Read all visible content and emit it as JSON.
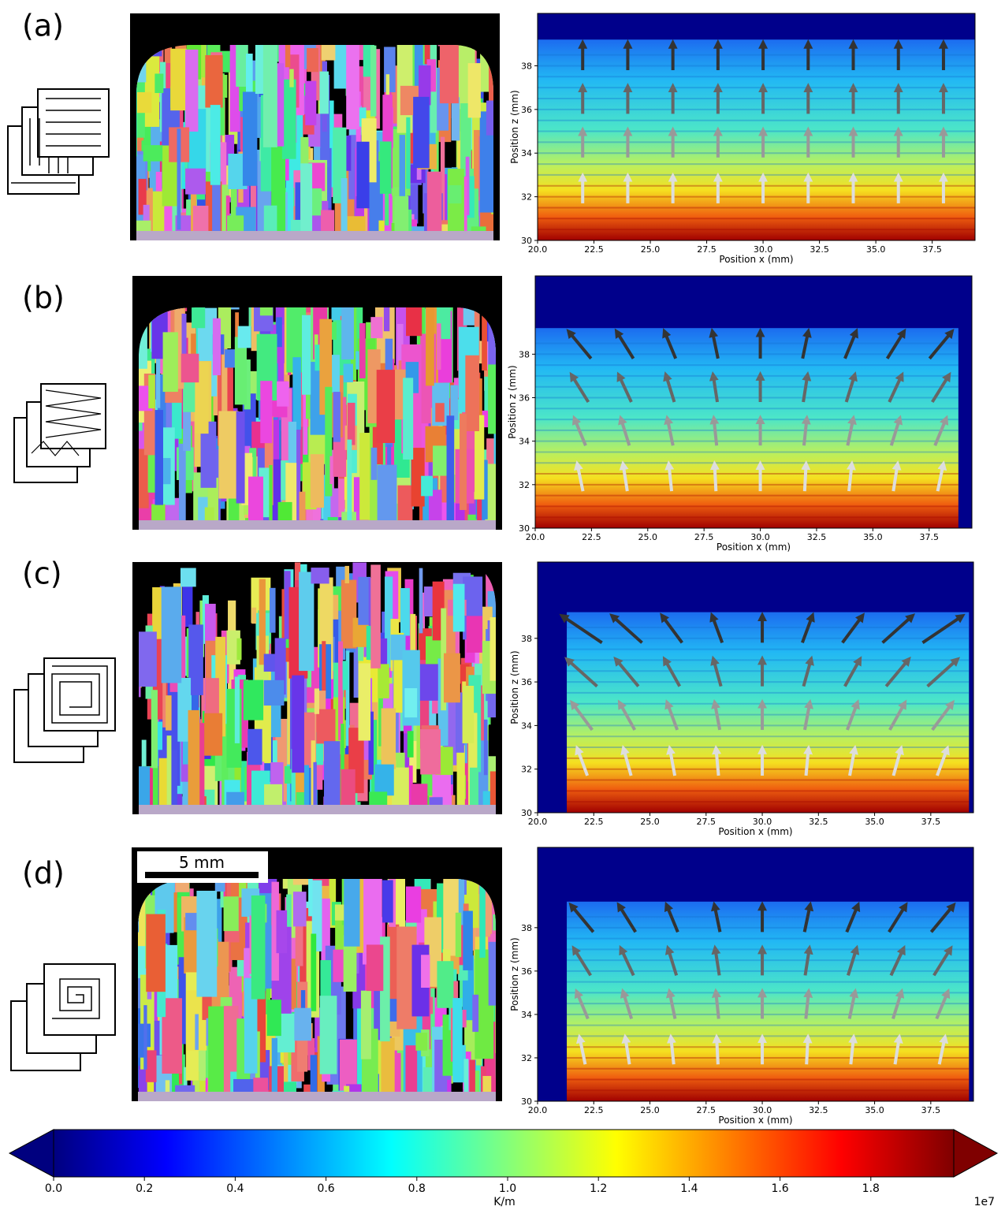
{
  "chart_data": [
    {
      "type": "heatmap",
      "label": "(a)",
      "x_label": "Position x (mm)",
      "y_label": "Position z (mm)",
      "xlim": [
        20,
        39.4
      ],
      "ylim": [
        30,
        40.4
      ],
      "xticks": [
        {
          "value": 20,
          "label": "20.0"
        },
        22.5,
        {
          "value": 25,
          "label": "25.0"
        },
        27.5,
        {
          "value": 30,
          "label": "30.0"
        },
        32.5,
        {
          "value": 35,
          "label": "35.0"
        },
        37.5
      ],
      "yticks": [
        30,
        32,
        34,
        36,
        38
      ]
    },
    {
      "type": "heatmap",
      "label": "(b)",
      "x_label": "Position x (mm)",
      "y_label": "Position z (mm)",
      "xlim": [
        20,
        39.4
      ],
      "ylim": [
        30,
        41.6
      ],
      "xticks": [
        {
          "value": 20,
          "label": "20.0"
        },
        22.5,
        {
          "value": 25,
          "label": "25.0"
        },
        27.5,
        {
          "value": 30,
          "label": "30.0"
        },
        32.5,
        {
          "value": 35,
          "label": "35.0"
        },
        37.5
      ],
      "yticks": [
        30,
        32,
        34,
        36,
        38
      ]
    },
    {
      "type": "heatmap",
      "label": "(c)",
      "x_label": "Position x (mm)",
      "y_label": "Position z (mm)",
      "xlim": [
        20,
        39.4
      ],
      "ylim": [
        30,
        41.5
      ],
      "xticks": [
        {
          "value": 20,
          "label": "20.0"
        },
        22.5,
        {
          "value": 25,
          "label": "25.0"
        },
        27.5,
        {
          "value": 30,
          "label": "30.0"
        },
        32.5,
        {
          "value": 35,
          "label": "35.0"
        },
        37.5
      ],
      "yticks": [
        30,
        32,
        34,
        36,
        38
      ]
    },
    {
      "type": "heatmap",
      "label": "(d)",
      "x_label": "Position x (mm)",
      "y_label": "Position z (mm)",
      "xlim": [
        20,
        39.4
      ],
      "ylim": [
        30,
        41.7
      ],
      "xticks": [
        {
          "value": 20,
          "label": "20.0"
        },
        22.5,
        {
          "value": 25,
          "label": "25.0"
        },
        27.5,
        {
          "value": 30,
          "label": "30.0"
        },
        32.5,
        {
          "value": 35,
          "label": "35.0"
        },
        37.5
      ],
      "yticks": [
        30,
        32,
        34,
        36,
        38
      ]
    }
  ],
  "scale_bar": "5 mm",
  "colorbar": {
    "label": "K/m",
    "offset_text": "1e7",
    "clim": [
      0,
      2
    ],
    "ticks": [
      {
        "value": 0,
        "label": "0.0"
      },
      0.2,
      0.4,
      0.6,
      0.8,
      {
        "value": 1,
        "label": "1.0"
      },
      1.2,
      1.4,
      1.6,
      1.8
    ]
  }
}
